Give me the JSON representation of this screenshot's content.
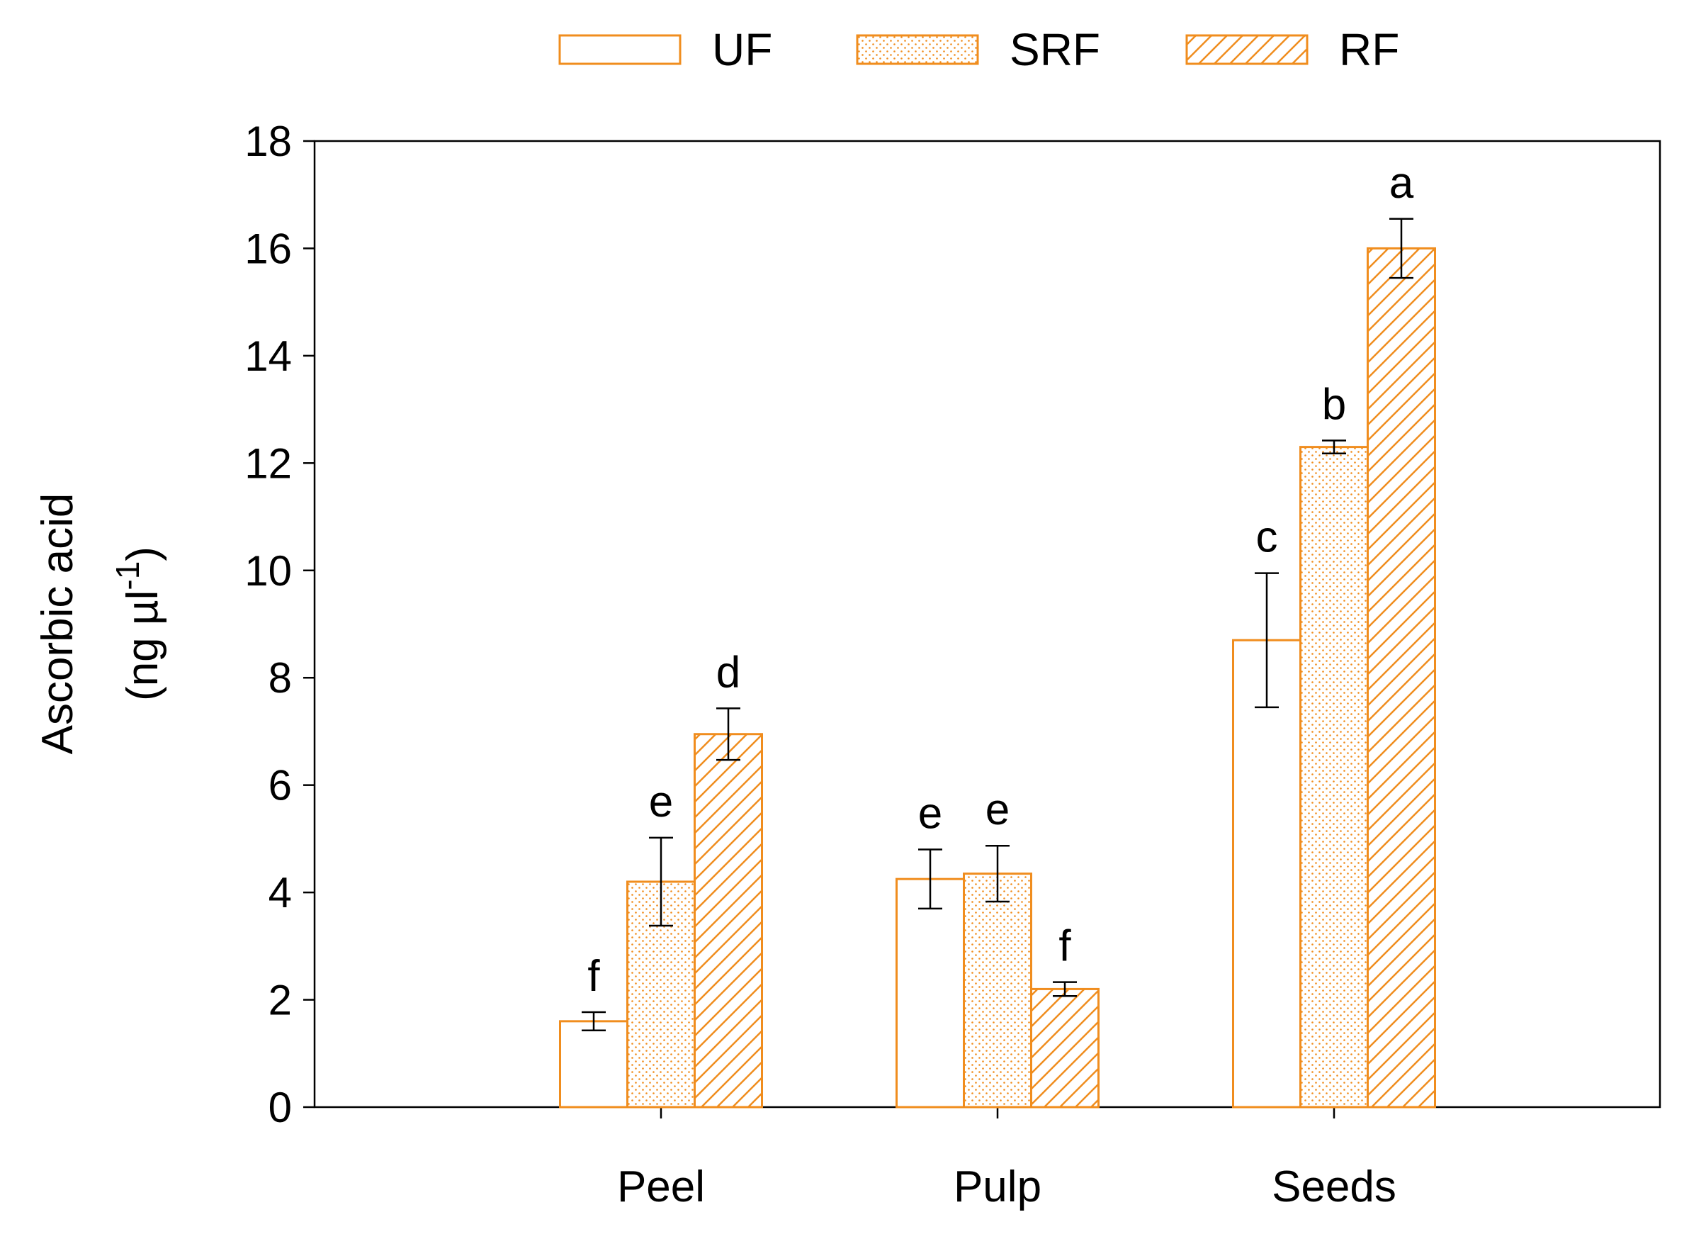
{
  "chart_data": {
    "type": "bar",
    "title": "",
    "xlabel": "",
    "ylabel_line1": "Ascorbic acid",
    "ylabel_unit_prefix": "(ng µl",
    "ylabel_unit_exponent": "-1",
    "ylabel_unit_suffix": ")",
    "ylim": [
      0,
      18
    ],
    "yticks": [
      "0",
      "2",
      "4",
      "6",
      "8",
      "10",
      "12",
      "14",
      "16",
      "18"
    ],
    "categories": [
      "Peel",
      "Pulp",
      "Seeds"
    ],
    "grid": false,
    "legend_position": "top-center",
    "series": [
      {
        "name": "UF",
        "pattern": "none",
        "values": [
          1.6,
          4.25,
          8.7
        ],
        "errors": [
          0.17,
          0.55,
          1.25
        ],
        "labels": [
          "f",
          "e",
          "c"
        ]
      },
      {
        "name": "SRF",
        "pattern": "dots",
        "values": [
          4.2,
          4.35,
          12.3
        ],
        "errors": [
          0.82,
          0.52,
          0.12
        ],
        "labels": [
          "e",
          "e",
          "b"
        ]
      },
      {
        "name": "RF",
        "pattern": "hatch",
        "values": [
          6.95,
          2.2,
          16.0
        ],
        "errors": [
          0.48,
          0.13,
          0.55
        ],
        "labels": [
          "d",
          "f",
          "a"
        ]
      }
    ],
    "bar_color": "#f08d1e"
  }
}
